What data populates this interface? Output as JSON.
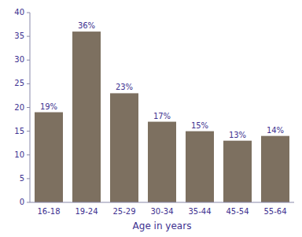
{
  "chart_data": {
    "type": "bar",
    "categories": [
      "16-18",
      "19-24",
      "25-29",
      "30-34",
      "35-44",
      "45-54",
      "55-64"
    ],
    "values": [
      19,
      36,
      23,
      17,
      15,
      13,
      14
    ],
    "value_labels": [
      "19%",
      "36%",
      "23%",
      "17%",
      "15%",
      "13%",
      "14%"
    ],
    "data_labels": true,
    "color": "#7d7060",
    "xlabel": "Age in years",
    "ylim": [
      0,
      40
    ],
    "yticks": [
      0,
      5,
      10,
      15,
      20,
      25,
      30,
      35,
      40
    ],
    "grid": false
  }
}
